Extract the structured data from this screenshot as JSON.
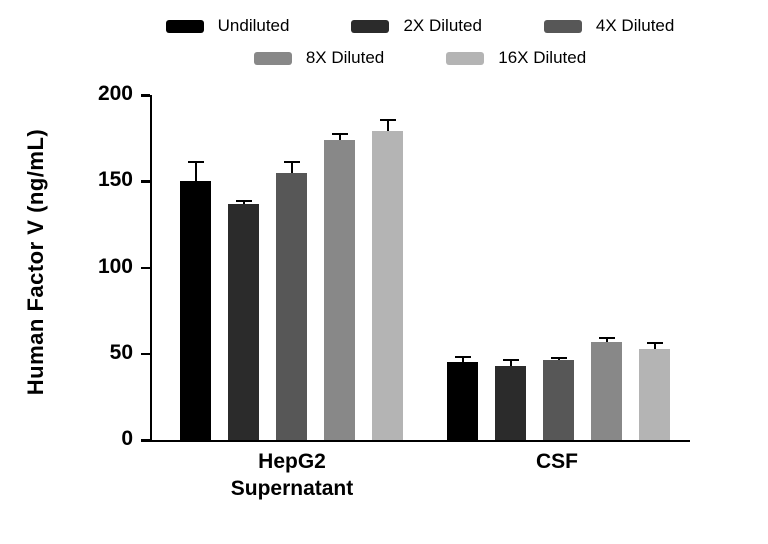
{
  "chart_data": {
    "type": "bar",
    "title": "",
    "xlabel": "",
    "ylabel": "Human  Factor V (ng/mL)",
    "ylim": [
      0,
      200
    ],
    "yticks": [
      0,
      50,
      100,
      150,
      200
    ],
    "ytick_labels": [
      "0",
      "50",
      "100",
      "150",
      "200"
    ],
    "grid": false,
    "legend_position": "top",
    "groups": [
      {
        "label": "HepG2 Supernatant"
      },
      {
        "label": "CSF"
      }
    ],
    "series": [
      {
        "name": "Undiluted",
        "color": "#000000",
        "values": [
          150,
          45
        ],
        "errors": [
          12,
          3.5
        ]
      },
      {
        "name": "2X Diluted",
        "color": "#2b2b2b",
        "values": [
          137,
          43
        ],
        "errors": [
          2,
          4
        ]
      },
      {
        "name": "4X Diluted",
        "color": "#575757",
        "values": [
          155,
          46.5
        ],
        "errors": [
          7,
          1.5
        ]
      },
      {
        "name": "8X Diluted",
        "color": "#888888",
        "values": [
          174,
          57
        ],
        "errors": [
          4,
          3
        ]
      },
      {
        "name": "16X Diluted",
        "color": "#b4b4b4",
        "values": [
          179,
          52.5
        ],
        "errors": [
          7,
          4.5
        ]
      }
    ]
  }
}
